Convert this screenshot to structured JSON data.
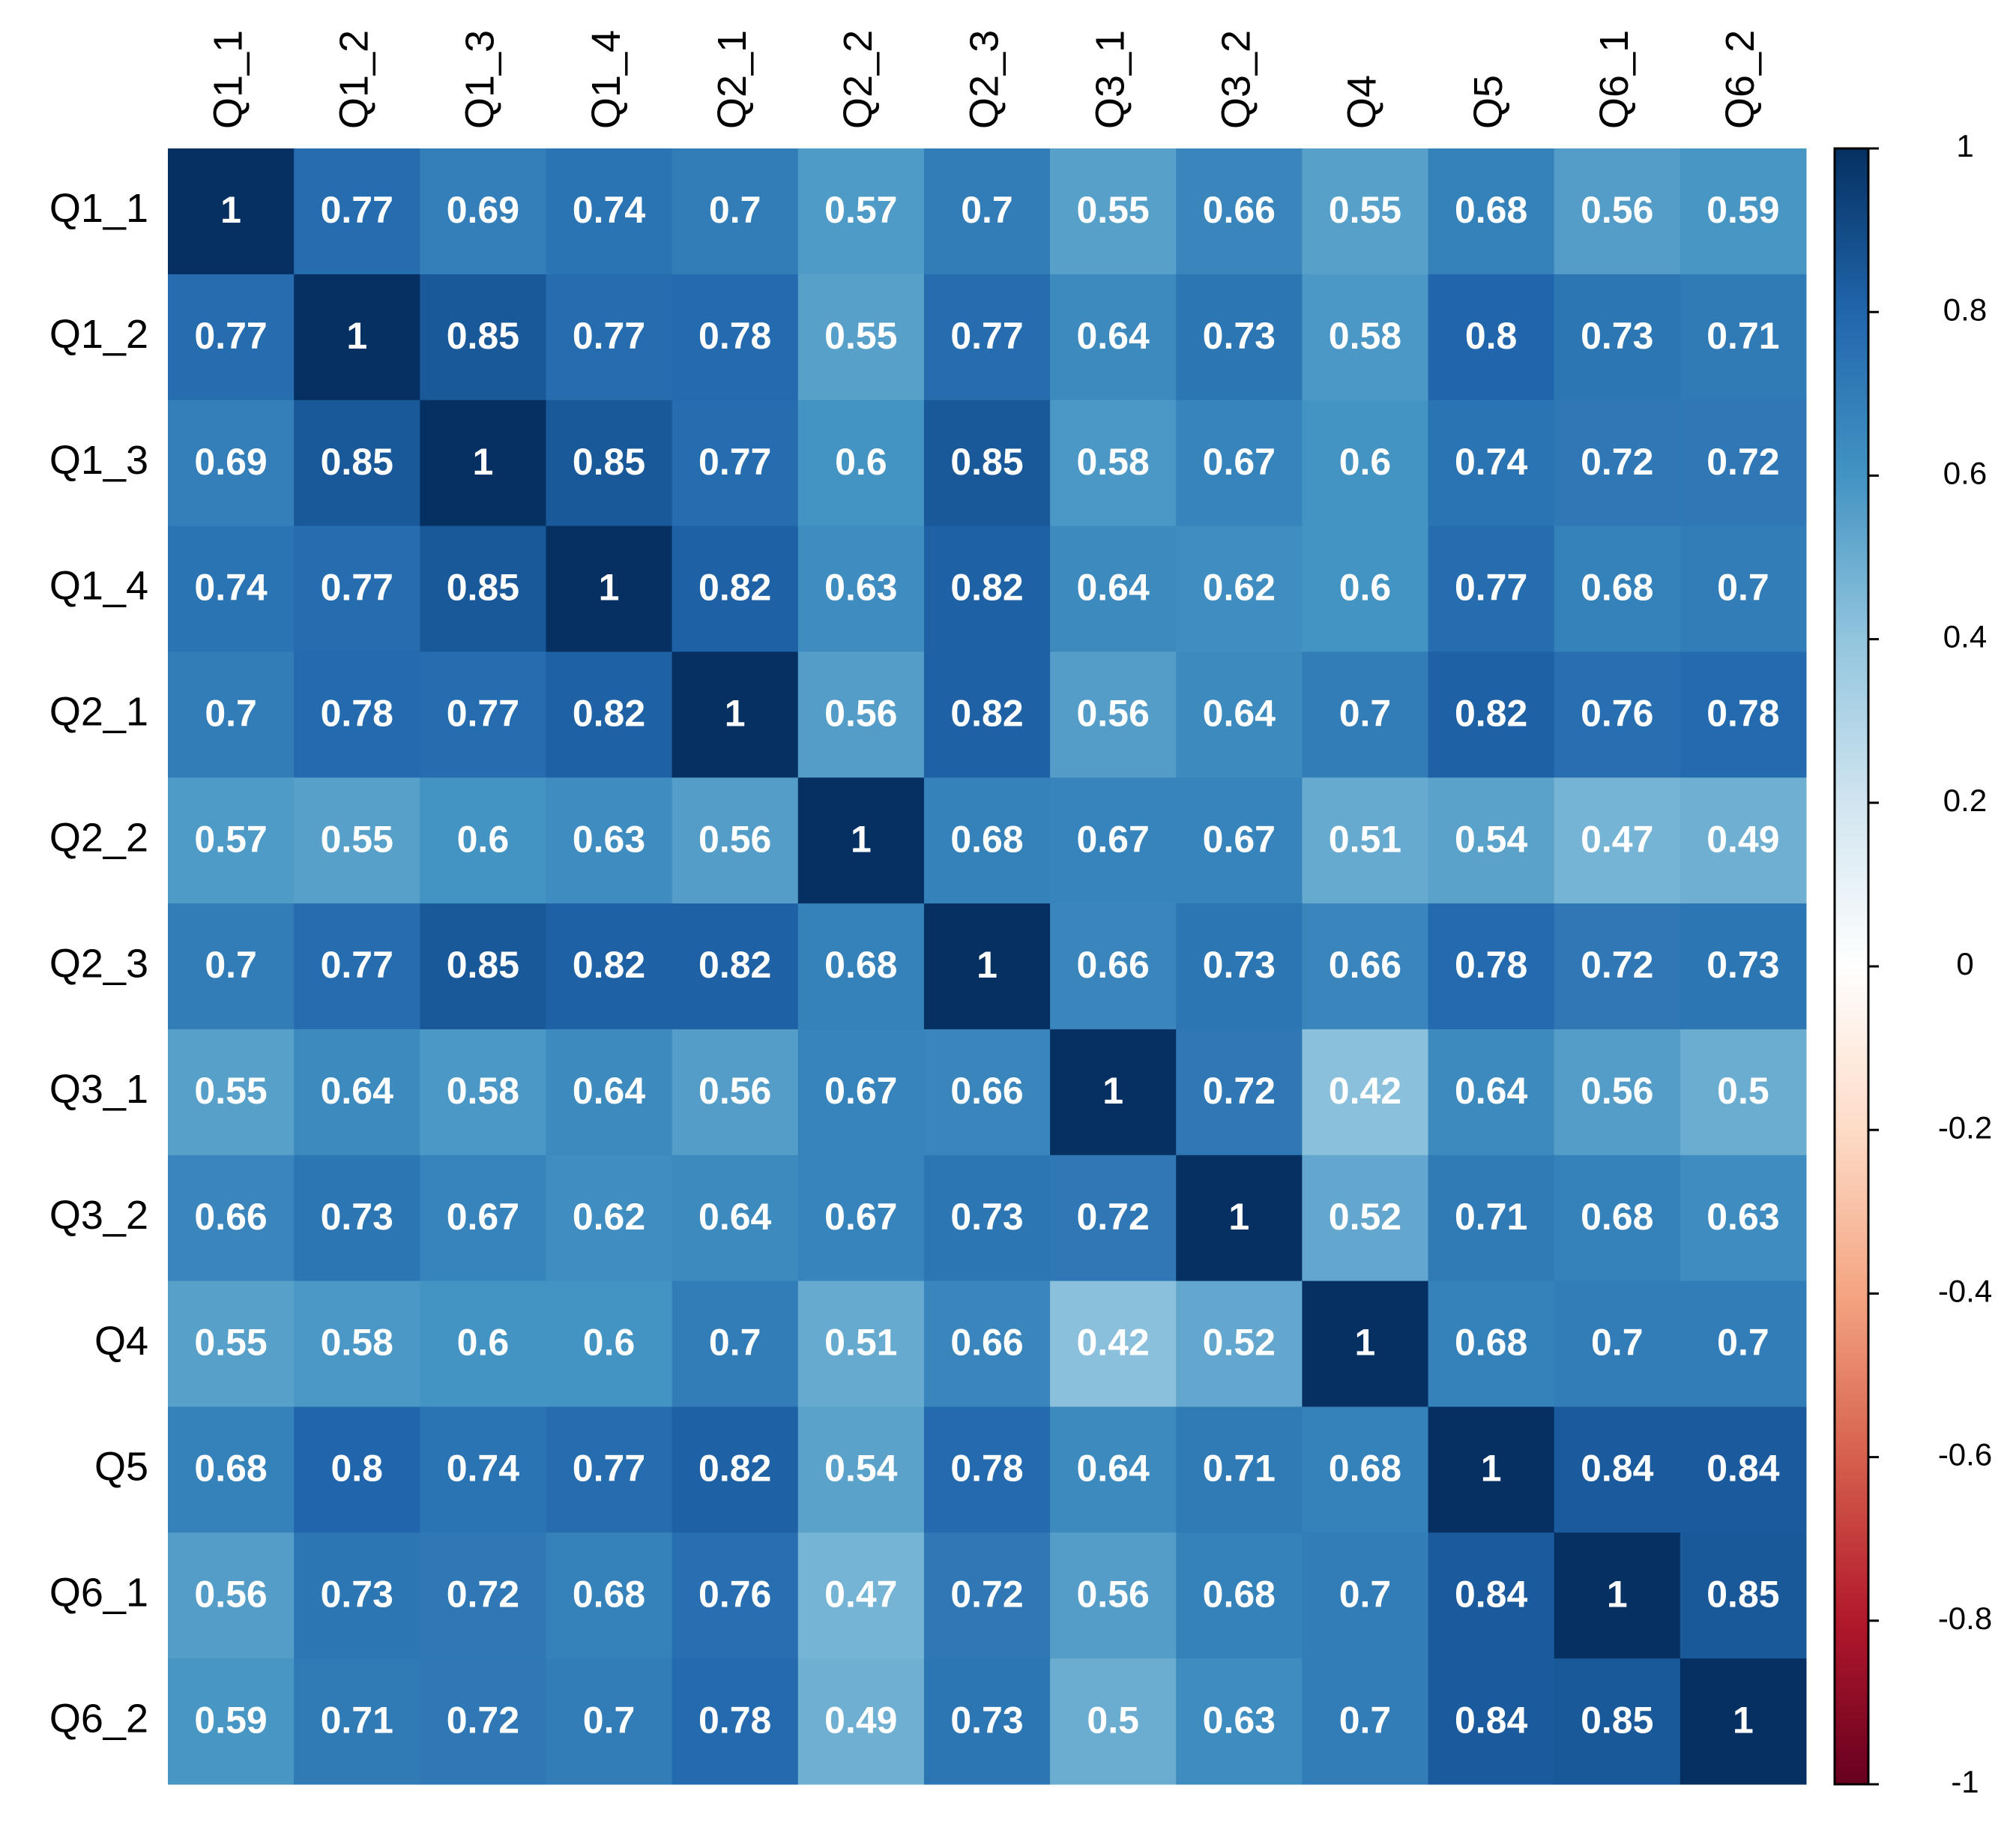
{
  "chart_data": {
    "type": "heatmap",
    "x": [
      "Q1_1",
      "Q1_2",
      "Q1_3",
      "Q1_4",
      "Q2_1",
      "Q2_2",
      "Q2_3",
      "Q3_1",
      "Q3_2",
      "Q4",
      "Q5",
      "Q6_1",
      "Q6_2"
    ],
    "y": [
      "Q1_1",
      "Q1_2",
      "Q1_3",
      "Q1_4",
      "Q2_1",
      "Q2_2",
      "Q2_3",
      "Q3_1",
      "Q3_2",
      "Q4",
      "Q5",
      "Q6_1",
      "Q6_2"
    ],
    "values": [
      [
        1,
        0.77,
        0.69,
        0.74,
        0.7,
        0.57,
        0.7,
        0.55,
        0.66,
        0.55,
        0.68,
        0.56,
        0.59
      ],
      [
        0.77,
        1,
        0.85,
        0.77,
        0.78,
        0.55,
        0.77,
        0.64,
        0.73,
        0.58,
        0.8,
        0.73,
        0.71
      ],
      [
        0.69,
        0.85,
        1,
        0.85,
        0.77,
        0.6,
        0.85,
        0.58,
        0.67,
        0.6,
        0.74,
        0.72,
        0.72
      ],
      [
        0.74,
        0.77,
        0.85,
        1,
        0.82,
        0.63,
        0.82,
        0.64,
        0.62,
        0.6,
        0.77,
        0.68,
        0.7
      ],
      [
        0.7,
        0.78,
        0.77,
        0.82,
        1,
        0.56,
        0.82,
        0.56,
        0.64,
        0.7,
        0.82,
        0.76,
        0.78
      ],
      [
        0.57,
        0.55,
        0.6,
        0.63,
        0.56,
        1,
        0.68,
        0.67,
        0.67,
        0.51,
        0.54,
        0.47,
        0.49
      ],
      [
        0.7,
        0.77,
        0.85,
        0.82,
        0.82,
        0.68,
        1,
        0.66,
        0.73,
        0.66,
        0.78,
        0.72,
        0.73
      ],
      [
        0.55,
        0.64,
        0.58,
        0.64,
        0.56,
        0.67,
        0.66,
        1,
        0.72,
        0.42,
        0.64,
        0.56,
        0.5
      ],
      [
        0.66,
        0.73,
        0.67,
        0.62,
        0.64,
        0.67,
        0.73,
        0.72,
        1,
        0.52,
        0.71,
        0.68,
        0.63
      ],
      [
        0.55,
        0.58,
        0.6,
        0.6,
        0.7,
        0.51,
        0.66,
        0.42,
        0.52,
        1,
        0.68,
        0.7,
        0.7
      ],
      [
        0.68,
        0.8,
        0.74,
        0.77,
        0.82,
        0.54,
        0.78,
        0.64,
        0.71,
        0.68,
        1,
        0.84,
        0.84
      ],
      [
        0.56,
        0.73,
        0.72,
        0.68,
        0.76,
        0.47,
        0.72,
        0.56,
        0.68,
        0.7,
        0.84,
        1,
        0.85
      ],
      [
        0.59,
        0.71,
        0.72,
        0.7,
        0.78,
        0.49,
        0.73,
        0.5,
        0.63,
        0.7,
        0.84,
        0.85,
        1
      ]
    ],
    "colorscale": [
      "#67001F",
      "#B2182B",
      "#D6604D",
      "#F4A582",
      "#FDDBC7",
      "#FFFFFF",
      "#D1E5F0",
      "#92C5DE",
      "#4393C3",
      "#2166AC",
      "#053061"
    ],
    "clim": [
      -1,
      1
    ],
    "cticks": [
      1,
      0.8,
      0.6,
      0.4,
      0.2,
      0,
      -0.2,
      -0.4,
      -0.6,
      -0.8,
      -1
    ]
  }
}
